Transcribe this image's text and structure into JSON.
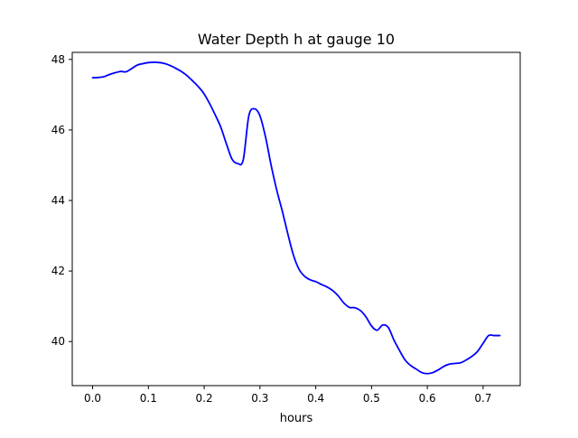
{
  "chart_data": {
    "type": "line",
    "title": "Water Depth h at gauge 10",
    "xlabel": "hours",
    "ylabel": "",
    "xlim": [
      -0.0365,
      0.7665
    ],
    "ylim": [
      38.75,
      48.2
    ],
    "xticks": [
      0.0,
      0.1,
      0.2,
      0.3,
      0.4,
      0.5,
      0.6,
      0.7
    ],
    "xtick_labels": [
      "0.0",
      "0.1",
      "0.2",
      "0.3",
      "0.4",
      "0.5",
      "0.6",
      "0.7"
    ],
    "yticks": [
      40,
      42,
      44,
      46,
      48
    ],
    "ytick_labels": [
      "40",
      "42",
      "44",
      "46",
      "48"
    ],
    "grid": false,
    "series": [
      {
        "color": "#0000ff",
        "x": [
          0.0,
          0.01,
          0.02,
          0.03,
          0.04,
          0.05,
          0.06,
          0.07,
          0.08,
          0.09,
          0.1,
          0.11,
          0.12,
          0.13,
          0.14,
          0.15,
          0.16,
          0.17,
          0.18,
          0.19,
          0.2,
          0.21,
          0.22,
          0.23,
          0.24,
          0.25,
          0.26,
          0.27,
          0.28,
          0.29,
          0.3,
          0.31,
          0.32,
          0.33,
          0.34,
          0.35,
          0.36,
          0.37,
          0.38,
          0.39,
          0.4,
          0.41,
          0.42,
          0.43,
          0.44,
          0.45,
          0.46,
          0.47,
          0.48,
          0.49,
          0.5,
          0.51,
          0.52,
          0.53,
          0.54,
          0.55,
          0.56,
          0.57,
          0.58,
          0.59,
          0.6,
          0.61,
          0.62,
          0.63,
          0.64,
          0.65,
          0.66,
          0.67,
          0.68,
          0.69,
          0.7,
          0.71,
          0.72,
          0.73
        ],
        "y": [
          47.48,
          47.49,
          47.51,
          47.57,
          47.62,
          47.66,
          47.65,
          47.74,
          47.84,
          47.88,
          47.91,
          47.92,
          47.91,
          47.88,
          47.82,
          47.74,
          47.65,
          47.53,
          47.38,
          47.22,
          47.02,
          46.74,
          46.42,
          46.07,
          45.6,
          45.17,
          45.05,
          45.15,
          46.4,
          46.6,
          46.4,
          45.8,
          45.0,
          44.3,
          43.7,
          43.05,
          42.45,
          42.05,
          41.85,
          41.75,
          41.7,
          41.62,
          41.55,
          41.45,
          41.3,
          41.1,
          40.97,
          40.96,
          40.88,
          40.7,
          40.44,
          40.32,
          40.47,
          40.4,
          40.05,
          39.75,
          39.48,
          39.32,
          39.22,
          39.12,
          39.09,
          39.12,
          39.2,
          39.3,
          39.36,
          39.38,
          39.4,
          39.48,
          39.58,
          39.72,
          39.95,
          40.17,
          40.17,
          40.17
        ]
      }
    ]
  }
}
